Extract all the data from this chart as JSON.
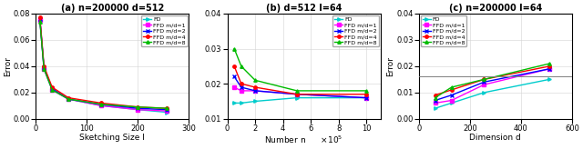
{
  "subplot_a": {
    "title": "(a) n=200000 d=512",
    "xlabel": "Sketching Size l",
    "ylabel": "Error",
    "xlim": [
      0,
      300
    ],
    "ylim": [
      0,
      0.08
    ],
    "yticks": [
      0,
      0.02,
      0.04,
      0.06,
      0.08
    ],
    "xticks": [
      0,
      100,
      200,
      300
    ],
    "x": [
      8,
      16,
      32,
      64,
      128,
      200,
      256
    ],
    "FD": [
      0.075,
      0.038,
      0.022,
      0.015,
      0.01,
      0.007,
      0.005
    ],
    "FFD_1": [
      0.075,
      0.038,
      0.022,
      0.015,
      0.01,
      0.007,
      0.006
    ],
    "FFD_2": [
      0.076,
      0.039,
      0.023,
      0.015,
      0.011,
      0.008,
      0.007
    ],
    "FFD_4": [
      0.077,
      0.04,
      0.024,
      0.016,
      0.012,
      0.009,
      0.008
    ],
    "FFD_8": [
      0.074,
      0.038,
      0.022,
      0.015,
      0.011,
      0.009,
      0.008
    ]
  },
  "subplot_b": {
    "title": "(b) d=512 l=64",
    "xlabel": "Number n",
    "ylabel": "Error",
    "xlim": [
      0,
      1100000
    ],
    "ylim": [
      0.01,
      0.04
    ],
    "yticks": [
      0.01,
      0.02,
      0.03,
      0.04
    ],
    "xticks": [
      0,
      200000,
      400000,
      600000,
      800000,
      1000000
    ],
    "xticklabels": [
      "0",
      "2",
      "4",
      "6",
      "8",
      "10"
    ],
    "x": [
      50000,
      100000,
      200000,
      500000,
      1000000
    ],
    "FD": [
      0.0145,
      0.0145,
      0.015,
      0.016,
      0.016
    ],
    "FFD_1": [
      0.019,
      0.018,
      0.018,
      0.017,
      0.016
    ],
    "FFD_2": [
      0.022,
      0.019,
      0.018,
      0.017,
      0.016
    ],
    "FFD_4": [
      0.025,
      0.02,
      0.019,
      0.017,
      0.017
    ],
    "FFD_8": [
      0.03,
      0.025,
      0.021,
      0.018,
      0.018
    ]
  },
  "subplot_c": {
    "title": "(c) n=200000 l=64",
    "xlabel": "Dimension d",
    "ylabel": "Error",
    "xlim": [
      0,
      600
    ],
    "ylim": [
      0,
      0.04
    ],
    "yticks": [
      0,
      0.01,
      0.02,
      0.03,
      0.04
    ],
    "xticks": [
      0,
      200,
      400,
      600
    ],
    "x": [
      64,
      128,
      256,
      512
    ],
    "FD": [
      0.004,
      0.006,
      0.01,
      0.015
    ],
    "FFD_1": [
      0.006,
      0.007,
      0.013,
      0.019
    ],
    "FFD_2": [
      0.007,
      0.009,
      0.014,
      0.019
    ],
    "FFD_4": [
      0.009,
      0.011,
      0.015,
      0.02
    ],
    "FFD_8": [
      0.008,
      0.012,
      0.015,
      0.021
    ],
    "hline": 0.016
  },
  "colors": {
    "FD": "#00CCCC",
    "FFD_1": "#FF00FF",
    "FFD_2": "#0000FF",
    "FFD_4": "#FF0000",
    "FFD_8": "#00BB00"
  },
  "markers": {
    "FD": ">",
    "FFD_1": "s",
    "FFD_2": "x",
    "FFD_4": "o",
    "FFD_8": "^"
  },
  "legend_labels": [
    "FD",
    "FFD m/d=1",
    "FFD m/d=2",
    "FFD m/d=4",
    "FFD m/d=8"
  ],
  "legend_keys": [
    "FD",
    "FFD_1",
    "FFD_2",
    "FFD_4",
    "FFD_8"
  ]
}
